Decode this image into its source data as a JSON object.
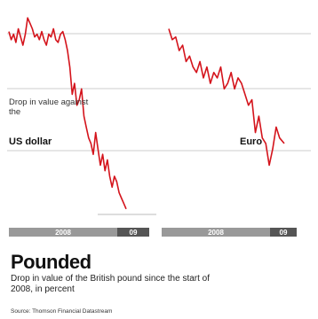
{
  "title": "Pounded",
  "subtitle": "Drop in value of the British pound since the start of 2008, in percent",
  "source": "Source: Thomson Financial Datastream",
  "colors": {
    "line": "#d4141c",
    "grid": "#cccccc",
    "axis_dark": "#555555",
    "axis_light": "#999999"
  },
  "chart_data": [
    {
      "type": "line",
      "note": "Drop in value against the",
      "series_name": "US dollar",
      "ylim": [
        -35,
        2
      ],
      "x_ticks": [
        "2008",
        "09"
      ],
      "x": [
        0,
        0.02,
        0.04,
        0.06,
        0.08,
        0.1,
        0.12,
        0.14,
        0.16,
        0.18,
        0.2,
        0.22,
        0.24,
        0.26,
        0.28,
        0.3,
        0.32,
        0.34,
        0.36,
        0.38,
        0.4,
        0.42,
        0.44,
        0.46,
        0.48,
        0.5,
        0.52,
        0.54,
        0.56,
        0.58,
        0.6,
        0.62,
        0.64,
        0.66,
        0.68,
        0.7,
        0.72,
        0.74,
        0.76,
        0.78,
        0.8,
        0.82,
        0.84,
        0.86,
        0.88,
        0.9,
        0.92,
        0.94,
        0.96,
        0.98,
        1.0
      ],
      "values": [
        -1.5,
        -3,
        -2,
        -3.5,
        -1,
        -2.5,
        -4,
        -2,
        1,
        0,
        -1,
        -2.5,
        -2,
        -3,
        -1.5,
        -3,
        -4,
        -2,
        -2.5,
        -1,
        -3,
        -3.5,
        -2,
        -1.5,
        -3,
        -5,
        -8,
        -13,
        -11,
        -15,
        -14,
        -12,
        -17,
        -19,
        -21,
        -22,
        -24,
        -20,
        -23,
        -26,
        -24,
        -27,
        -25,
        -28,
        -30,
        -28,
        -29,
        -31,
        -32,
        -33,
        -34
      ]
    },
    {
      "type": "line",
      "series_name": "Euro",
      "ylim": [
        -35,
        2
      ],
      "x_ticks": [
        "2008",
        "09"
      ],
      "x": [
        0,
        0.03,
        0.06,
        0.09,
        0.12,
        0.15,
        0.18,
        0.21,
        0.24,
        0.27,
        0.3,
        0.33,
        0.36,
        0.39,
        0.42,
        0.45,
        0.48,
        0.51,
        0.54,
        0.57,
        0.6,
        0.63,
        0.66,
        0.69,
        0.72,
        0.75,
        0.78,
        0.81,
        0.84,
        0.87,
        0.9,
        0.93,
        0.96,
        1.0
      ],
      "values": [
        -1,
        -3,
        -2.5,
        -5,
        -4,
        -7,
        -6,
        -8,
        -9,
        -7,
        -10,
        -8,
        -11,
        -9,
        -10,
        -8,
        -12,
        -11,
        -9,
        -12,
        -10,
        -11,
        -13,
        -15,
        -14,
        -20,
        -17,
        -21,
        -22,
        -26,
        -23,
        -19,
        -21,
        -22
      ]
    }
  ]
}
